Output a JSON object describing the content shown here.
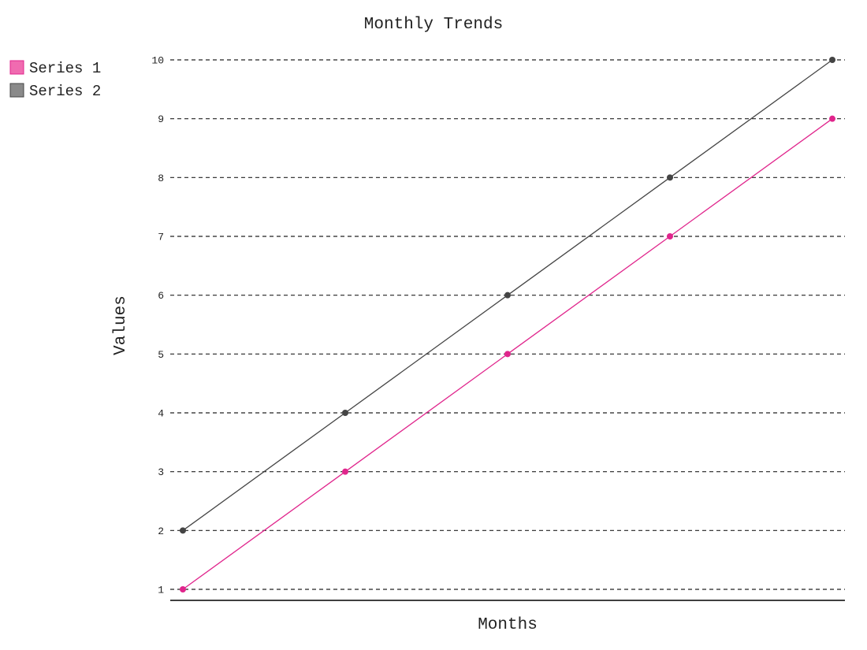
{
  "chart_data": {
    "type": "line",
    "title": "Monthly Trends",
    "xlabel": "Months",
    "ylabel": "Values",
    "x": [
      1,
      2,
      3,
      4,
      5
    ],
    "ylim": [
      1,
      10
    ],
    "yticks": [
      1,
      2,
      3,
      4,
      5,
      6,
      7,
      8,
      9,
      10
    ],
    "grid": true,
    "legend_position": "top-left",
    "series": [
      {
        "name": "Series 1",
        "values": [
          1,
          3,
          5,
          7,
          9
        ],
        "color": "#e0258c",
        "legend_fill": "#f06bb0"
      },
      {
        "name": "Series 2",
        "values": [
          2,
          4,
          6,
          8,
          10
        ],
        "color": "#444444",
        "legend_fill": "#8a8a8a"
      }
    ]
  }
}
